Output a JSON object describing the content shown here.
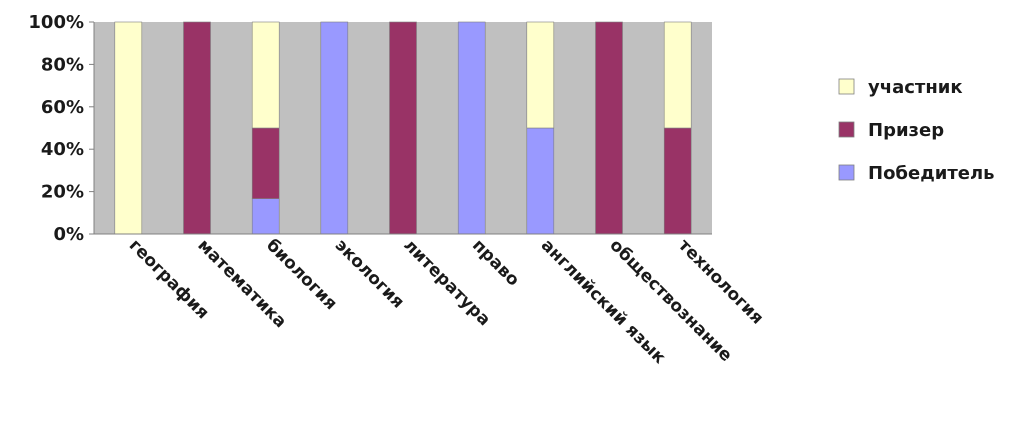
{
  "chart_data": {
    "type": "bar",
    "stacked": "percent",
    "categories": [
      "география",
      "математика",
      "биология",
      "экология",
      "литература",
      "право",
      "английский язык",
      "обществознание",
      "технология"
    ],
    "series": [
      {
        "name": "Победитель",
        "color": "#9999ff",
        "values": [
          0,
          0,
          16.7,
          100,
          0,
          100,
          50,
          0,
          0
        ]
      },
      {
        "name": "Призер",
        "color": "#993366",
        "values": [
          0,
          100,
          33.3,
          0,
          100,
          0,
          0,
          100,
          50
        ]
      },
      {
        "name": "участник",
        "color": "#ffffcc",
        "values": [
          100,
          0,
          50,
          0,
          0,
          0,
          50,
          0,
          50
        ]
      }
    ],
    "yticks": [
      "0%",
      "20%",
      "40%",
      "60%",
      "80%",
      "100%"
    ],
    "ylim": [
      0,
      100
    ],
    "legend_order": [
      "участник",
      "Призер",
      "Победитель"
    ],
    "legend_position": "right",
    "plot_background": "#c0c0c0",
    "grid": false
  }
}
